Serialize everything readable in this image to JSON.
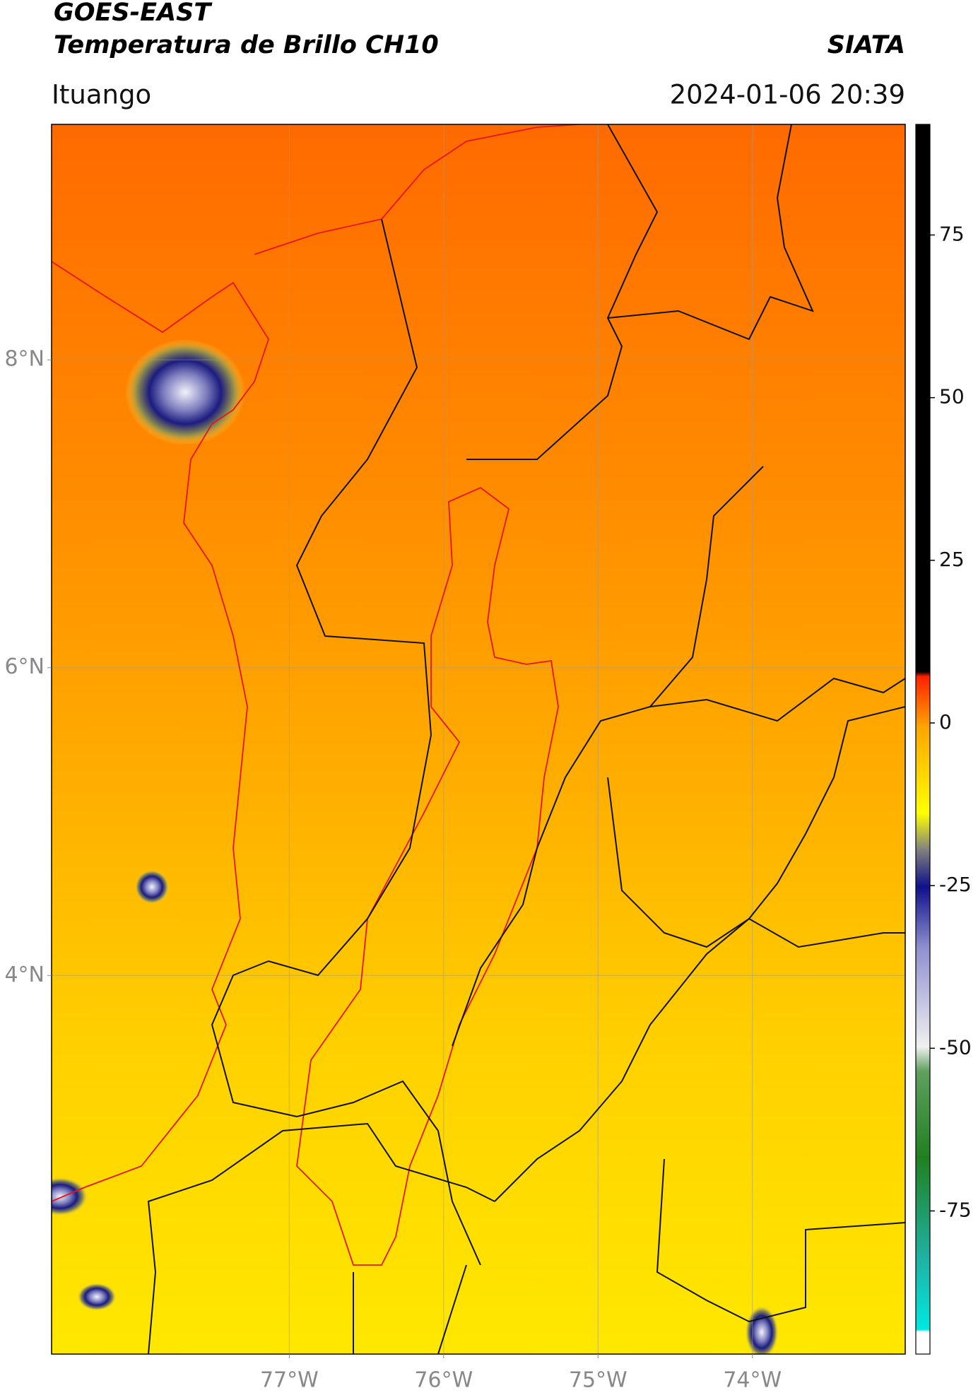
{
  "header": {
    "title_line1": "GOES-EAST",
    "title_line2": "Temperatura de Brillo CH10",
    "organization": "SIATA",
    "location": "Ituango",
    "datetime": "2024-01-06 20:39"
  },
  "map": {
    "xlim": [
      -78.54,
      -73.01
    ],
    "ylim": [
      1.54,
      9.53
    ],
    "xticks": [
      {
        "value": -77,
        "label": "77°W"
      },
      {
        "value": -76,
        "label": "76°W"
      },
      {
        "value": -75,
        "label": "75°W"
      },
      {
        "value": -74,
        "label": "74°W"
      }
    ],
    "yticks": [
      {
        "value": 8,
        "label": "8°N"
      },
      {
        "value": 6,
        "label": "6°N"
      },
      {
        "value": 4,
        "label": "4°N"
      }
    ],
    "grid": true
  },
  "colorbar": {
    "range": [
      -97,
      92
    ],
    "ticks": [
      75,
      50,
      25,
      0,
      -25,
      -50,
      -75
    ]
  }
}
